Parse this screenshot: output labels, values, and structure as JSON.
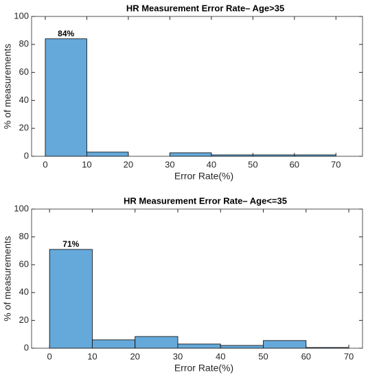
{
  "chart_data": [
    {
      "type": "histogram",
      "title": "HR Measurement Error Rate–  Age>35",
      "xlabel": "Error Rate(%)",
      "ylabel": "% of measurements",
      "bins": [
        0,
        10,
        20,
        30,
        40,
        50,
        60,
        70
      ],
      "values": [
        84,
        3,
        0,
        2.5,
        1,
        1,
        1
      ],
      "value_labels": [
        "84%",
        null,
        null,
        null,
        null,
        null,
        null
      ],
      "color": "#65a9db",
      "xlim": [
        -3.3,
        76.4
      ],
      "xticks": [
        0,
        10,
        20,
        30,
        40,
        50,
        60,
        70
      ],
      "ylim": [
        0,
        100
      ],
      "yticks": [
        0,
        20,
        40,
        60,
        80,
        100
      ]
    },
    {
      "type": "histogram",
      "title": "HR Measurement Error Rate–  Age<=35",
      "xlabel": "Error Rate(%)",
      "ylabel": "% of measurements",
      "bins": [
        0,
        10,
        20,
        30,
        40,
        50,
        60,
        70
      ],
      "values": [
        71,
        6,
        8.4,
        3,
        2,
        5.5,
        0.5
      ],
      "value_labels": [
        "71%",
        null,
        null,
        null,
        null,
        null,
        null
      ],
      "color": "#65a9db",
      "xlim": [
        -4.2,
        73.2
      ],
      "xticks": [
        0,
        10,
        20,
        30,
        40,
        50,
        60,
        70
      ],
      "ylim": [
        0,
        100
      ],
      "yticks": [
        0,
        20,
        40,
        60,
        80,
        100
      ]
    }
  ]
}
